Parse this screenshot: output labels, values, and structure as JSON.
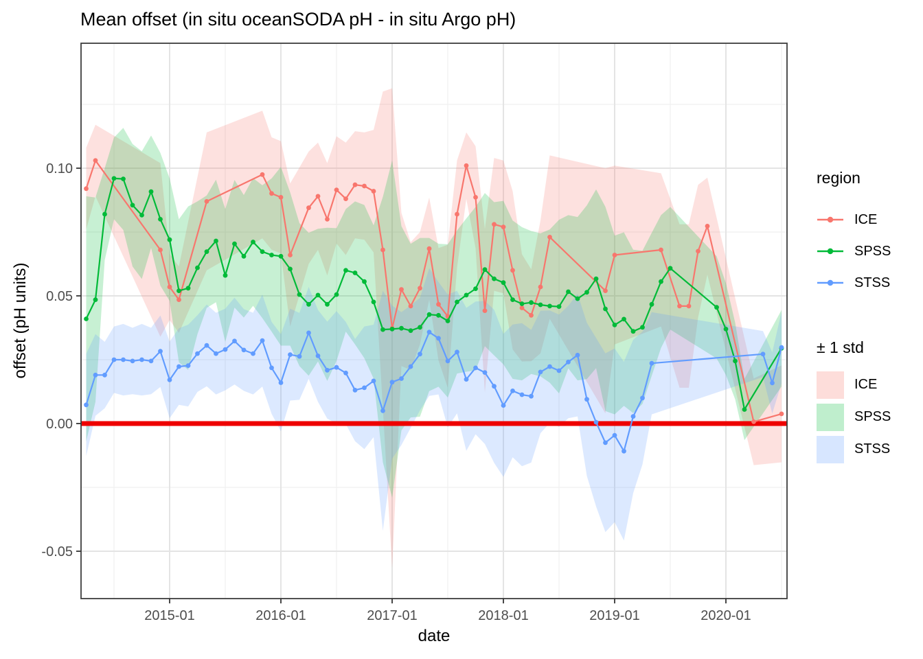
{
  "title": "Mean offset (in situ oceanSODA pH - in situ Argo pH)",
  "axes": {
    "x_label": "date",
    "y_label": "offset (pH units)",
    "x_ticks": [
      "2015-01",
      "2016-01",
      "2017-01",
      "2018-01",
      "2019-01",
      "2020-01"
    ],
    "x_minor_ticks": [
      "2014-07",
      "2015-07",
      "2016-07",
      "2017-07",
      "2018-07",
      "2019-07",
      "2020-07"
    ],
    "y_ticks": [
      {
        "label": "-0.05",
        "value": -0.05
      },
      {
        "label": "0.00",
        "value": 0.0
      },
      {
        "label": "0.05",
        "value": 0.05
      },
      {
        "label": "0.10",
        "value": 0.1
      }
    ],
    "y_minor_ticks": [
      -0.025,
      0.025,
      0.075,
      0.125
    ]
  },
  "legend": {
    "region_title": "region",
    "std_title": "± 1 std",
    "region_entries": [
      {
        "label": "ICE",
        "color": "#F8766D"
      },
      {
        "label": "SPSS",
        "color": "#00BA38"
      },
      {
        "label": "STSS",
        "color": "#619CFF"
      }
    ],
    "std_entries": [
      {
        "label": "ICE",
        "color": "#F8766D"
      },
      {
        "label": "SPSS",
        "color": "#00BA38"
      },
      {
        "label": "STSS",
        "color": "#619CFF"
      }
    ]
  },
  "zero_line": {
    "color": "#EE0000",
    "value": 0.0
  },
  "chart_data": {
    "type": "line",
    "title": "Mean offset (in situ oceanSODA pH - in situ Argo pH)",
    "xlabel": "date",
    "ylabel": "offset (pH units)",
    "x_start_month": "2014-04",
    "x_end_month": "2020-07",
    "x_step": "1 month",
    "ylim": [
      -0.0686,
      0.1489
    ],
    "grid": "major and minor, light grey",
    "legend_position": "right",
    "ribbon": "mean ± 1 std, alpha 0.22",
    "ribbon_alpha": 0.22,
    "point_radius": 3.4,
    "line_width": 2.2,
    "series": [
      {
        "name": "ICE",
        "color": "#F8766D",
        "mean": [
          0.092,
          0.103,
          null,
          null,
          null,
          null,
          null,
          null,
          0.068,
          0.0535,
          0.0485,
          null,
          null,
          0.087,
          null,
          null,
          null,
          null,
          null,
          0.0975,
          0.0901,
          0.0886,
          0.066,
          null,
          0.0845,
          0.089,
          0.08,
          0.0915,
          0.088,
          0.0935,
          0.093,
          0.091,
          0.068,
          0.0373,
          0.0525,
          0.046,
          0.053,
          0.0685,
          0.0467,
          0.042,
          0.082,
          0.101,
          0.0886,
          0.0442,
          0.078,
          0.077,
          0.06,
          0.0453,
          0.0424,
          0.0535,
          0.073,
          null,
          null,
          null,
          null,
          null,
          0.052,
          0.066,
          null,
          null,
          null,
          null,
          0.068,
          null,
          0.046,
          0.046,
          0.0675,
          0.0773,
          null,
          null,
          null,
          null,
          0.0007,
          null,
          null,
          0.0038
        ],
        "std": [
          0.016,
          0.014,
          null,
          null,
          null,
          null,
          null,
          null,
          0.034,
          0.013,
          0.013,
          null,
          null,
          0.027,
          null,
          null,
          null,
          null,
          null,
          0.025,
          0.022,
          0.022,
          0.028,
          null,
          0.022,
          0.021,
          0.022,
          0.021,
          0.022,
          0.021,
          0.021,
          0.024,
          0.062,
          0.094,
          0.03,
          0.025,
          0.022,
          0.02,
          0.022,
          0.028,
          0.021,
          0.013,
          0.02,
          0.032,
          0.026,
          0.026,
          0.031,
          0.021,
          0.018,
          0.026,
          0.032,
          null,
          null,
          null,
          null,
          null,
          0.048,
          0.035,
          null,
          null,
          null,
          null,
          0.03,
          null,
          0.032,
          0.032,
          0.026,
          0.019,
          null,
          null,
          null,
          null,
          0.017,
          null,
          null,
          0.019
        ]
      },
      {
        "name": "SPSS",
        "color": "#00BA38",
        "mean": [
          0.041,
          0.0485,
          0.082,
          0.096,
          0.0958,
          0.0855,
          0.0816,
          0.0908,
          0.08,
          0.072,
          0.052,
          0.053,
          0.061,
          0.0673,
          0.0715,
          0.058,
          0.0704,
          0.0655,
          0.0711,
          0.0673,
          0.066,
          0.0655,
          0.0605,
          0.0505,
          0.0467,
          0.0503,
          0.0467,
          0.0505,
          0.06,
          0.059,
          0.0556,
          0.0476,
          0.0368,
          0.037,
          0.0373,
          0.0364,
          0.0377,
          0.0427,
          0.0424,
          0.0402,
          0.0476,
          0.0503,
          0.0528,
          0.0603,
          0.0567,
          0.0552,
          0.0485,
          0.0469,
          0.0474,
          0.0465,
          0.046,
          0.0458,
          0.0516,
          0.0489,
          0.0514,
          0.0567,
          0.0449,
          0.0386,
          0.0409,
          0.0361,
          0.0377,
          0.0467,
          0.0556,
          0.0608,
          null,
          null,
          null,
          null,
          0.0455,
          0.037,
          0.0245,
          0.0055,
          null,
          null,
          null,
          0.0295
        ],
        "std": [
          0.048,
          0.04,
          0.018,
          0.016,
          0.02,
          0.024,
          0.025,
          0.022,
          0.026,
          0.024,
          0.028,
          0.032,
          0.026,
          0.022,
          0.024,
          0.026,
          0.025,
          0.024,
          0.025,
          0.026,
          0.03,
          0.035,
          0.03,
          0.028,
          0.028,
          0.026,
          0.03,
          0.026,
          0.024,
          0.028,
          0.03,
          0.03,
          0.052,
          0.066,
          0.04,
          0.034,
          0.035,
          0.03,
          0.028,
          0.03,
          0.028,
          0.03,
          0.032,
          0.03,
          0.03,
          0.032,
          0.031,
          0.03,
          0.028,
          0.028,
          0.03,
          0.034,
          0.03,
          0.032,
          0.034,
          0.035,
          0.04,
          0.035,
          0.034,
          0.032,
          0.03,
          0.028,
          0.026,
          0.024,
          null,
          null,
          null,
          null,
          0.02,
          0.018,
          0.015,
          0.012,
          null,
          null,
          null,
          0.015
        ]
      },
      {
        "name": "STSS",
        "color": "#619CFF",
        "mean": [
          0.0073,
          0.019,
          0.019,
          0.025,
          0.025,
          0.0245,
          0.025,
          0.0245,
          0.0283,
          0.0171,
          0.0223,
          0.0227,
          0.0274,
          0.0306,
          0.0274,
          0.029,
          0.0323,
          0.0288,
          0.0274,
          0.0325,
          0.0218,
          0.016,
          0.027,
          0.0263,
          0.0355,
          0.0265,
          0.0209,
          0.022,
          0.0198,
          0.0131,
          0.014,
          0.0167,
          0.005,
          0.0162,
          0.0176,
          0.0223,
          0.0272,
          0.0358,
          0.0334,
          0.0245,
          0.028,
          0.0173,
          0.0218,
          0.02,
          0.0146,
          0.0071,
          0.0128,
          0.0113,
          0.0107,
          0.0202,
          0.0223,
          0.0207,
          0.0241,
          0.0268,
          0.0095,
          0.0005,
          -0.0075,
          -0.0046,
          -0.0108,
          0.0028,
          0.01,
          0.0236,
          null,
          null,
          null,
          null,
          null,
          null,
          null,
          null,
          null,
          null,
          null,
          0.0272,
          0.0159,
          0.0298
        ],
        "std": [
          0.02,
          0.016,
          0.013,
          0.013,
          0.014,
          0.013,
          0.014,
          0.013,
          0.014,
          0.015,
          0.015,
          0.016,
          0.015,
          0.016,
          0.016,
          0.016,
          0.017,
          0.016,
          0.016,
          0.018,
          0.018,
          0.019,
          0.018,
          0.017,
          0.018,
          0.018,
          0.019,
          0.022,
          0.02,
          0.02,
          0.024,
          0.022,
          0.047,
          0.03,
          0.026,
          0.024,
          0.022,
          0.025,
          0.022,
          0.026,
          0.024,
          0.028,
          0.026,
          0.028,
          0.03,
          0.028,
          0.026,
          0.028,
          0.026,
          0.024,
          0.022,
          0.022,
          0.022,
          0.024,
          0.03,
          0.033,
          0.035,
          0.034,
          0.035,
          0.03,
          0.026,
          0.02,
          null,
          null,
          null,
          null,
          null,
          null,
          null,
          null,
          null,
          null,
          null,
          0.009,
          0.012,
          0.014
        ]
      }
    ]
  }
}
